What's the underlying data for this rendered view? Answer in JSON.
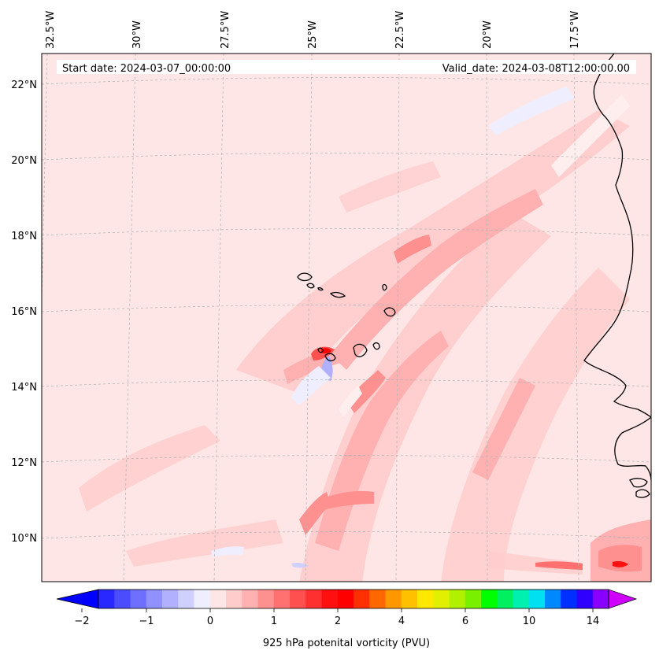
{
  "map": {
    "start_date_text": "Start date: 2024-03-07_00:00:00",
    "valid_date_text": "Valid_date: 2024-03-08T12:00:00.00",
    "lon_labels": [
      "32.5°W",
      "30°W",
      "27.5°W",
      "25°W",
      "22.5°W",
      "20°W",
      "17.5°W"
    ],
    "lat_labels": [
      "22°N",
      "20°N",
      "18°N",
      "16°N",
      "14°N",
      "12°N",
      "10°N"
    ],
    "background_color": "#ffe6e6",
    "coast_color": "#000000"
  },
  "colorbar": {
    "label": "925 hPa potenital vorticity (PVU)",
    "tick_labels": [
      "−2",
      "−1",
      "0",
      "1",
      "2",
      "4",
      "6",
      "10",
      "14"
    ],
    "colors": [
      "#0000ff",
      "#2828ff",
      "#4c4cff",
      "#6e6eff",
      "#9090ff",
      "#b0b0ff",
      "#d0d0ff",
      "#eeeeff",
      "#ffe6e6",
      "#ffcccc",
      "#ffb0b0",
      "#ff9090",
      "#ff7070",
      "#ff5050",
      "#ff3030",
      "#ff1010",
      "#ff0000",
      "#ff3000",
      "#ff6800",
      "#ff9800",
      "#ffc000",
      "#ffe800",
      "#e0f000",
      "#b0f000",
      "#78f000",
      "#00ff00",
      "#00f060",
      "#00f0b0",
      "#00e0f0",
      "#0088ff",
      "#0030ff",
      "#3000ff",
      "#8800ff",
      "#d000ff"
    ]
  }
}
